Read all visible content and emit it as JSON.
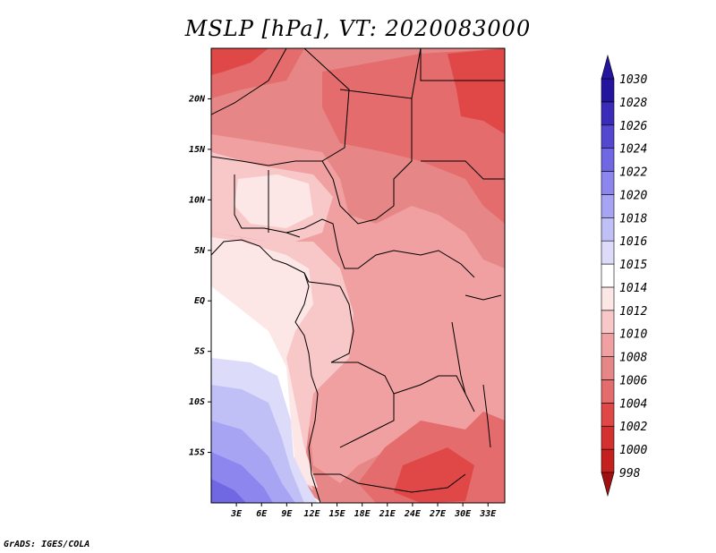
{
  "title": "MSLP [hPa], VT: 2020083000",
  "footer": "GrADS: IGES/COLA",
  "map": {
    "lon_range": [
      0,
      35
    ],
    "lat_range": [
      -20,
      25
    ],
    "lon_ticks": [
      {
        "value": 3,
        "label": "3E"
      },
      {
        "value": 6,
        "label": "6E"
      },
      {
        "value": 9,
        "label": "9E"
      },
      {
        "value": 12,
        "label": "12E"
      },
      {
        "value": 15,
        "label": "15E"
      },
      {
        "value": 18,
        "label": "18E"
      },
      {
        "value": 21,
        "label": "21E"
      },
      {
        "value": 24,
        "label": "24E"
      },
      {
        "value": 27,
        "label": "27E"
      },
      {
        "value": 30,
        "label": "30E"
      },
      {
        "value": 33,
        "label": "33E"
      }
    ],
    "lat_ticks": [
      {
        "value": 20,
        "label": "20N"
      },
      {
        "value": 15,
        "label": "15N"
      },
      {
        "value": 10,
        "label": "10N"
      },
      {
        "value": 5,
        "label": "5N"
      },
      {
        "value": 0,
        "label": "EQ"
      },
      {
        "value": -5,
        "label": "5S"
      },
      {
        "value": -10,
        "label": "10S"
      },
      {
        "value": -15,
        "label": "15S"
      }
    ]
  },
  "colorbar": {
    "levels": [
      {
        "label": "998",
        "color": "#b01818"
      },
      {
        "label": "1000",
        "color": "#c42020"
      },
      {
        "label": "1002",
        "color": "#d43030"
      },
      {
        "label": "1004",
        "color": "#e04848"
      },
      {
        "label": "1006",
        "color": "#e46c6c"
      },
      {
        "label": "1008",
        "color": "#e68686"
      },
      {
        "label": "1010",
        "color": "#f0a0a0"
      },
      {
        "label": "1012",
        "color": "#f8c8c8"
      },
      {
        "label": "1014",
        "color": "#fde6e6"
      },
      {
        "label": "1015",
        "color": "#ffffff"
      },
      {
        "label": "1016",
        "color": "#dcdcfa"
      },
      {
        "label": "1018",
        "color": "#c0c0f6"
      },
      {
        "label": "1020",
        "color": "#a8a4f4"
      },
      {
        "label": "1022",
        "color": "#8c86ee"
      },
      {
        "label": "1024",
        "color": "#7068e2"
      },
      {
        "label": "1026",
        "color": "#5448d0"
      },
      {
        "label": "1028",
        "color": "#3a2cb8"
      },
      {
        "label": "1030",
        "color": "#24149e"
      }
    ],
    "upper_color": "#24149e",
    "lower_color": "#a01010"
  }
}
